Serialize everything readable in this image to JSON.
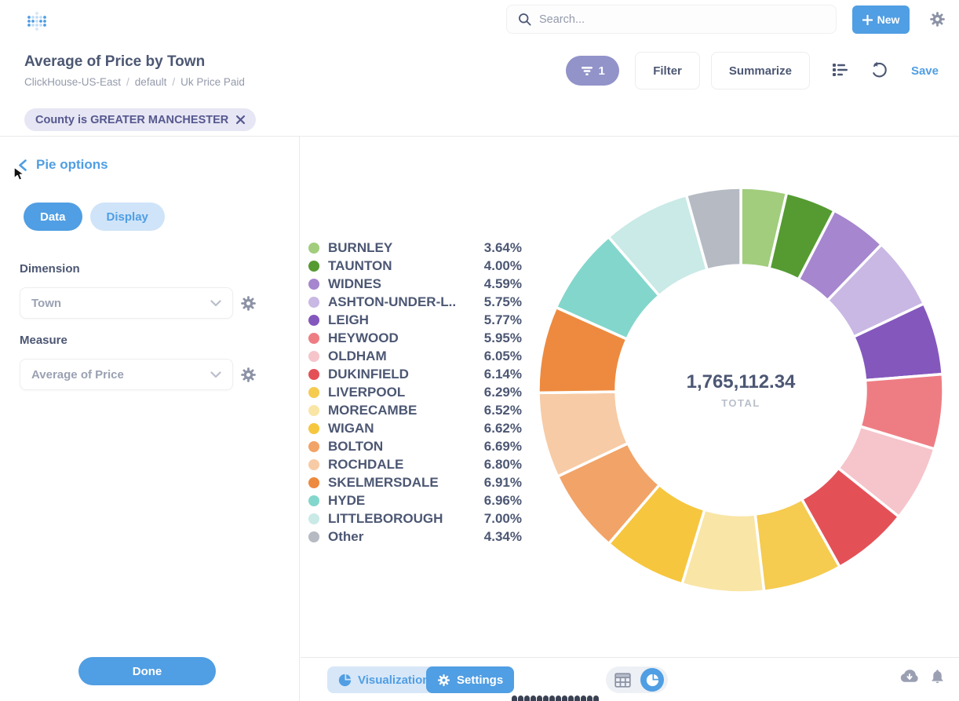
{
  "header": {
    "search_placeholder": "Search...",
    "new_button": "New",
    "icons": [
      "app-logo-dots",
      "search-icon",
      "plus-icon",
      "gear-icon"
    ]
  },
  "question": {
    "title": "Average of Price by Town",
    "breadcrumb": [
      "ClickHouse-US-East",
      "default",
      "Uk Price Paid"
    ],
    "breadcrumb_separator": "/",
    "filter_count": "1",
    "filter_button": "Filter",
    "summarize_button": "Summarize",
    "save_button": "Save",
    "filter_chip": "County is GREATER MANCHESTER",
    "icons": [
      "funnel-icon",
      "notebook-icon",
      "refresh-icon",
      "close-icon"
    ]
  },
  "sidebar": {
    "title": "Pie options",
    "tabs": [
      {
        "label": "Data",
        "active": true
      },
      {
        "label": "Display",
        "active": false
      }
    ],
    "dimension": {
      "label": "Dimension",
      "value": "Town"
    },
    "measure": {
      "label": "Measure",
      "value": "Average of Price"
    },
    "done_button": "Done",
    "icons": [
      "chevron-left-icon",
      "chevron-down-icon",
      "gear-icon",
      "hand-cursor"
    ]
  },
  "footer": {
    "visualization_button": "Visualization",
    "settings_button": "Settings",
    "icons": [
      "pie-chart-icon",
      "gear-icon",
      "table-icon",
      "cloud-download-icon",
      "bell-icon"
    ]
  },
  "chart_data": {
    "type": "pie",
    "title": "Average of Price by Town",
    "donut": true,
    "legend_position": "left",
    "total_value": "1,765,112.34",
    "total_label": "TOTAL",
    "start_angle_deg": 0,
    "categories": [
      "BURNLEY",
      "TAUNTON",
      "WIDNES",
      "ASHTON-UNDER-L..",
      "LEIGH",
      "HEYWOOD",
      "OLDHAM",
      "DUKINFIELD",
      "LIVERPOOL",
      "MORECAMBE",
      "WIGAN",
      "BOLTON",
      "ROCHDALE",
      "SKELMERSDALE",
      "HYDE",
      "LITTLEBOROUGH",
      "Other"
    ],
    "values": [
      3.64,
      4.0,
      4.59,
      5.75,
      5.77,
      5.95,
      6.05,
      6.14,
      6.29,
      6.52,
      6.62,
      6.69,
      6.8,
      6.91,
      6.96,
      7.0,
      4.34
    ],
    "value_unit": "%",
    "colors": [
      "#a1cd7d",
      "#559b31",
      "#a686ce",
      "#c9b7e4",
      "#8457bd",
      "#ee7d83",
      "#f5c5cb",
      "#e35157",
      "#f5cb50",
      "#f9e5a5",
      "#f6c63e",
      "#f2a367",
      "#f7cba5",
      "#ed8a3f",
      "#83d6cb",
      "#c9eae6",
      "#b5bac3"
    ],
    "accent_color": "#509ee3"
  }
}
